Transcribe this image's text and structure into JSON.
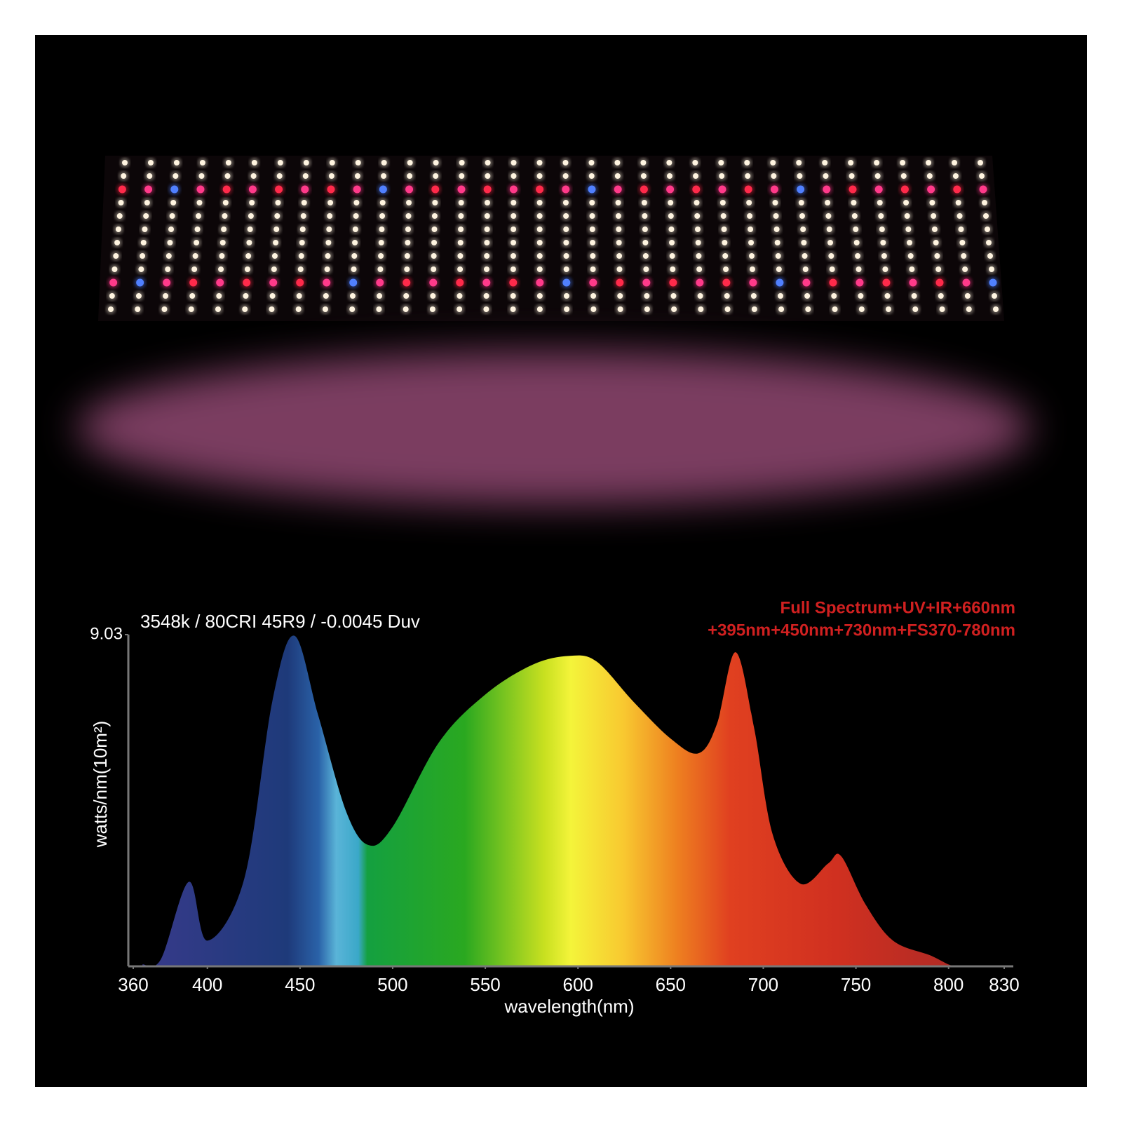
{
  "chart_data": {
    "type": "area",
    "title": "3548k / 80CRI 45R9 / -0.0045 Duv",
    "annotations": [
      "Full Spectrum+UV+IR+660nm",
      "+395nm+450nm+730nm+FS370-780nm"
    ],
    "x_label": "wavelength(nm)",
    "y_label": "watts/nm(10m²)",
    "x": [
      365,
      375,
      390,
      400,
      420,
      435,
      447,
      460,
      475,
      487,
      500,
      525,
      550,
      575,
      595,
      610,
      630,
      650,
      665,
      675,
      685,
      695,
      705,
      720,
      735,
      742,
      755,
      770,
      790,
      800,
      805
    ],
    "values": [
      0.05,
      0.2,
      2.3,
      0.7,
      2.4,
      7.2,
      9.0,
      6.8,
      4.2,
      3.3,
      3.8,
      6.1,
      7.4,
      8.2,
      8.45,
      8.3,
      7.2,
      6.2,
      5.8,
      6.6,
      8.55,
      6.5,
      3.6,
      2.25,
      2.8,
      3.0,
      1.7,
      0.7,
      0.3,
      0.05,
      0
    ],
    "xlim": [
      360,
      830
    ],
    "xticks": [
      360,
      400,
      450,
      500,
      550,
      600,
      650,
      700,
      750,
      800,
      830
    ],
    "ylim": [
      0,
      9.03
    ],
    "yticks": [
      9.03
    ]
  }
}
